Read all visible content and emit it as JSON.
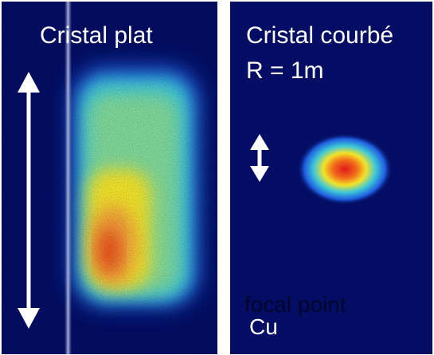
{
  "left_panel": {
    "title": "Cristal plat",
    "background": "#030d63",
    "streak_color": "#8a93c9"
  },
  "right_panel": {
    "title_line1": "Cristal courbé",
    "title_line2": "R = 1m",
    "overlay_text": "focal point",
    "element_label": "Cu",
    "background": "#030d63"
  },
  "colors": {
    "arrow": "#ffffff",
    "heat_core": "#e8301a",
    "heat_mid": "#f2e32a",
    "heat_outer": "#3ec8d8",
    "heat_edge": "#1e5be0"
  }
}
